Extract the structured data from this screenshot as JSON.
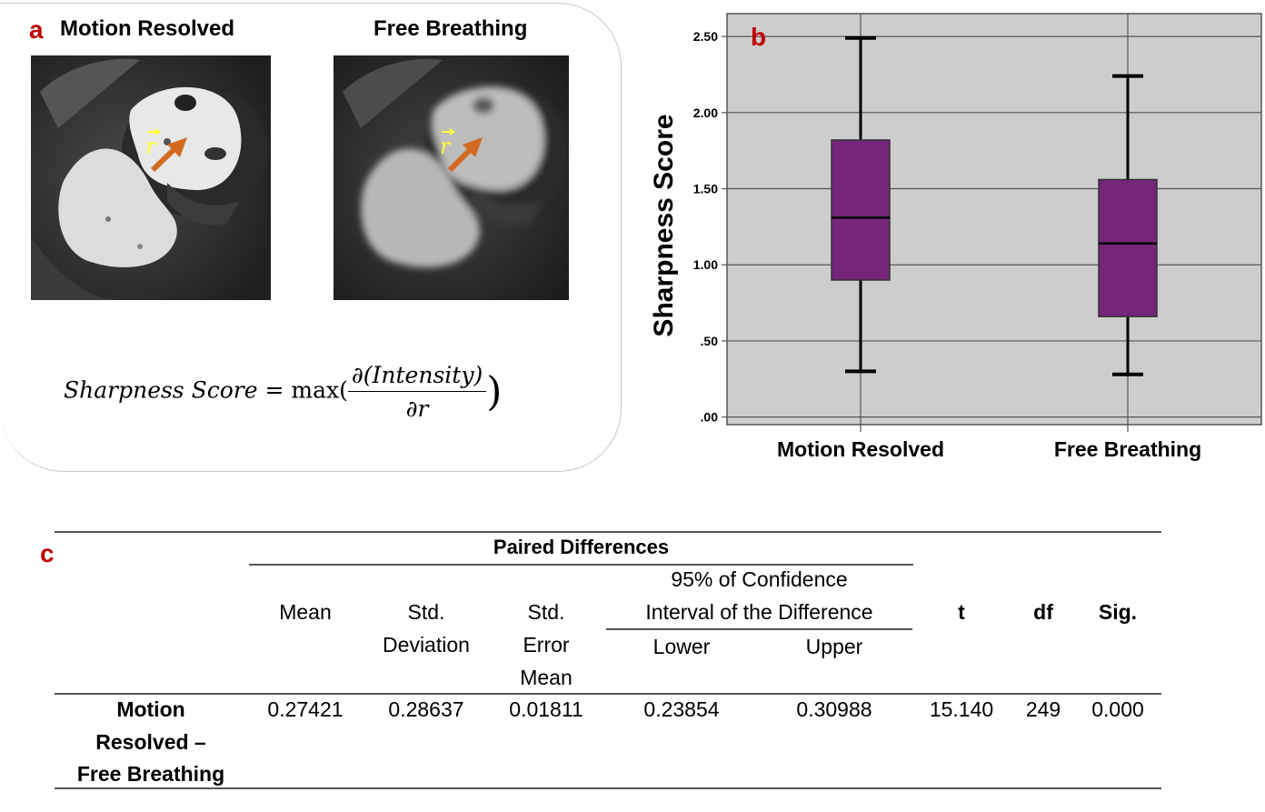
{
  "panel_a": {
    "letter": "a",
    "left_title": "Motion Resolved",
    "right_title": "Free Breathing",
    "vector_label": "r",
    "formula": {
      "lhs": "Sharpness Score",
      "equals": "=",
      "func": "max(",
      "numerator": "∂(Intensity)",
      "denominator": "∂r",
      "close": ")"
    }
  },
  "panel_b": {
    "letter": "b"
  },
  "chart_data": {
    "type": "box",
    "title": "",
    "xlabel": "",
    "ylabel": "Sharpness Score",
    "ylim": [
      -0.05,
      2.65
    ],
    "yticks": [
      0.0,
      0.5,
      1.0,
      1.5,
      2.0,
      2.5
    ],
    "ytick_labels": [
      ".00",
      ".50",
      "1.00",
      "1.50",
      "2.00",
      "2.50"
    ],
    "categories": [
      "Motion Resolved",
      "Free Breathing"
    ],
    "series": [
      {
        "name": "Motion Resolved",
        "min": 0.3,
        "q1": 0.9,
        "median": 1.31,
        "q3": 1.82,
        "max": 2.49
      },
      {
        "name": "Free Breathing",
        "min": 0.28,
        "q1": 0.66,
        "median": 1.14,
        "q3": 1.56,
        "max": 2.24
      }
    ],
    "box_color": "#76267a",
    "background": "#cdcdcd",
    "grid": true
  },
  "panel_c": {
    "letter": "c",
    "header_group": "Paired Differences",
    "ci_group_line1": "95% of Confidence",
    "ci_group_line2": "Interval of the Difference",
    "col_mean": "Mean",
    "col_sd_1": "Std.",
    "col_sd_2": "Deviation",
    "col_sem_1": "Std.",
    "col_sem_2": "Error",
    "col_sem_3": "Mean",
    "col_lower": "Lower",
    "col_upper": "Upper",
    "col_t": "t",
    "col_df": "df",
    "col_sig": "Sig.",
    "row_label_1": "Motion",
    "row_label_2": "Resolved –",
    "row_label_3": "Free Breathing",
    "row": {
      "mean": "0.27421",
      "sd": "0.28637",
      "sem": "0.01811",
      "lower": "0.23854",
      "upper": "0.30988",
      "t": "15.140",
      "df": "249",
      "sig": "0.000"
    }
  }
}
